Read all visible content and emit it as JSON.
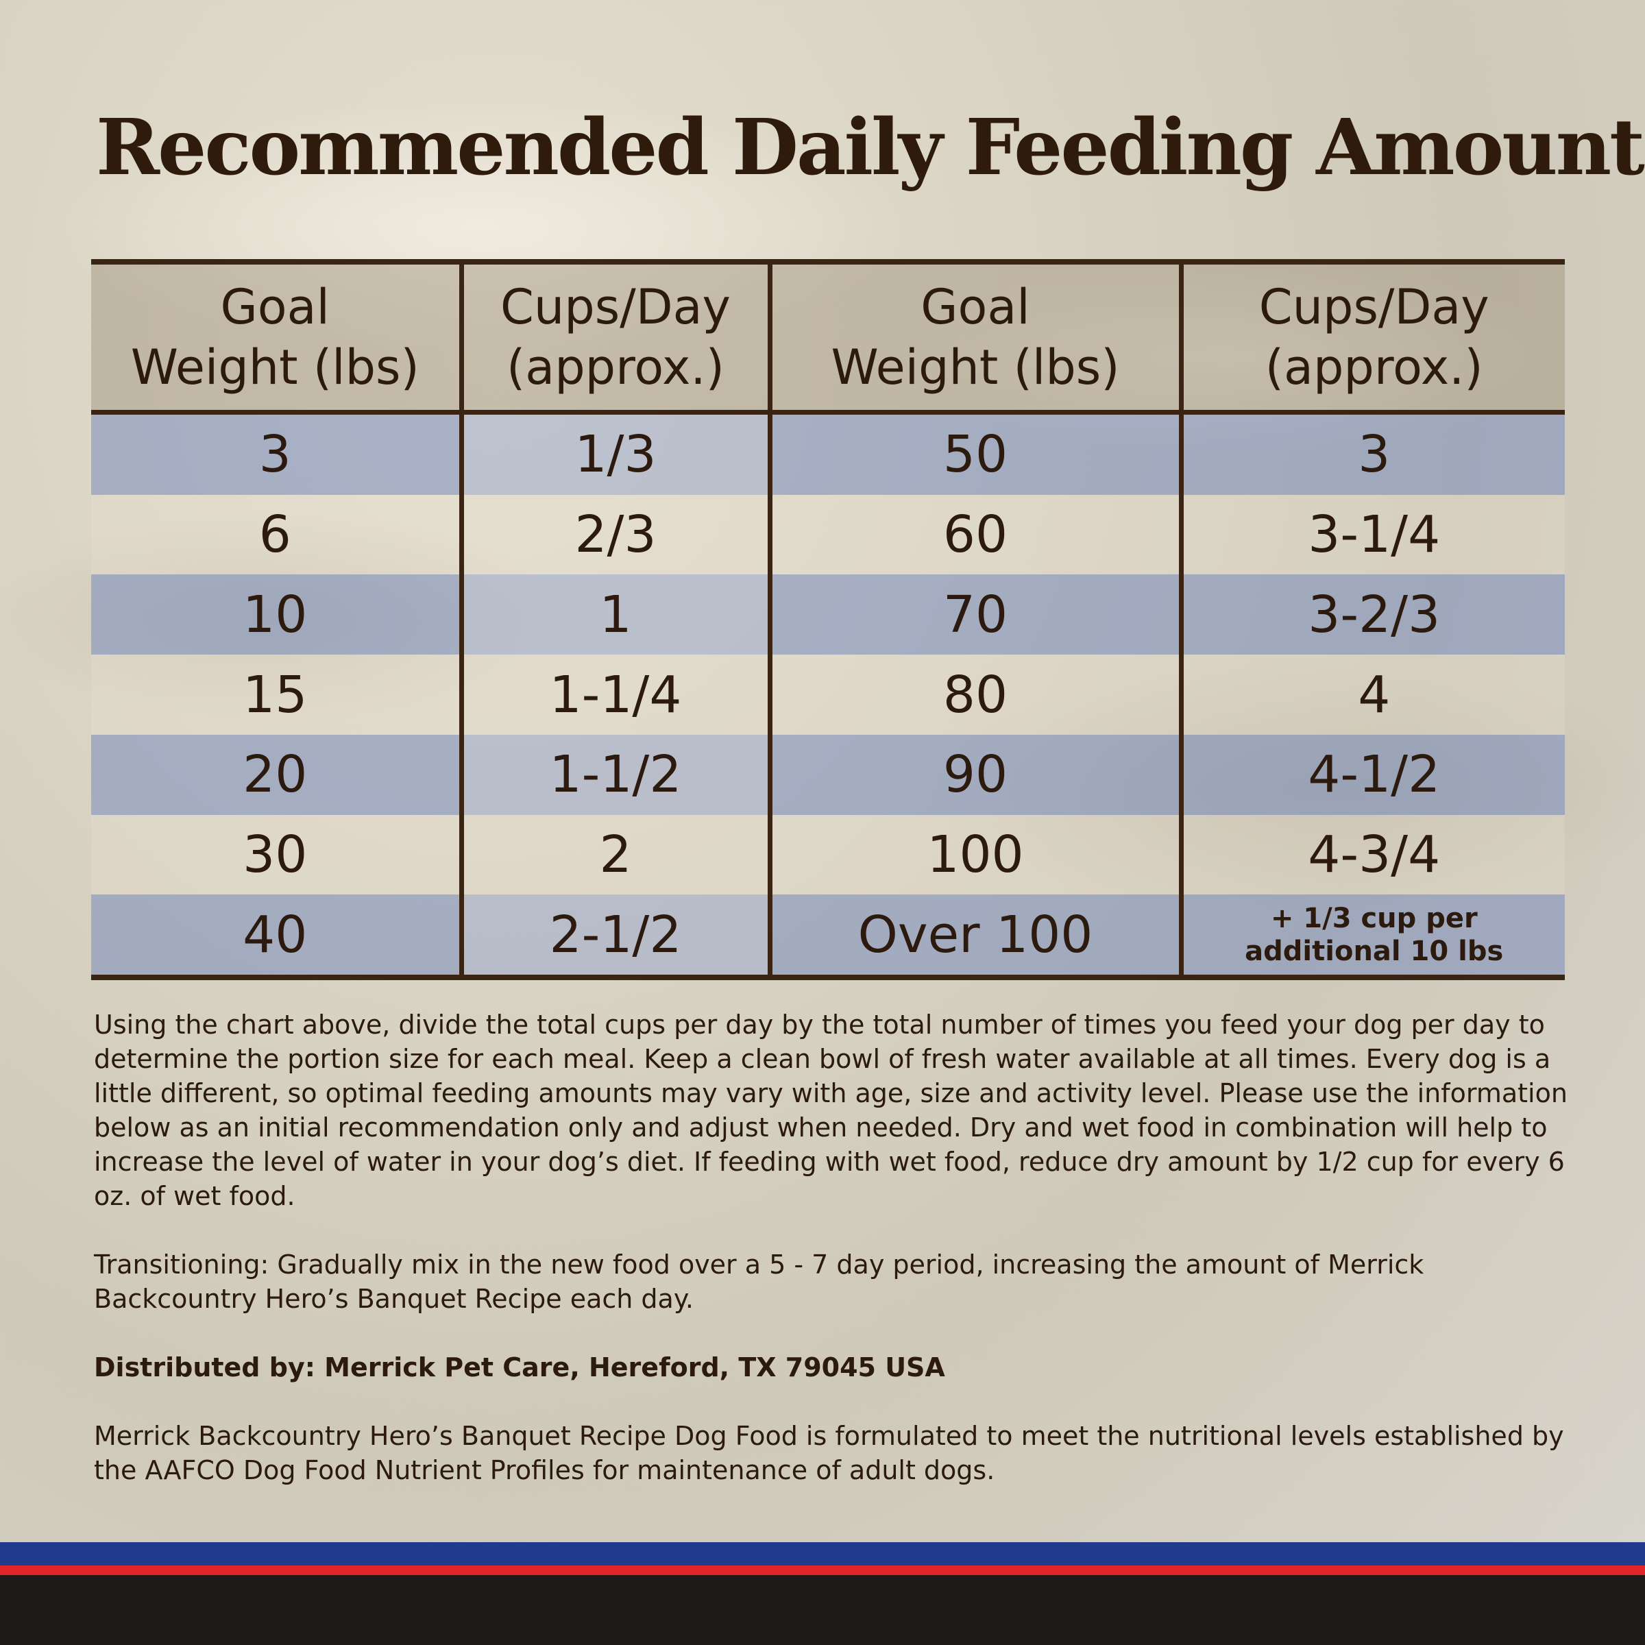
{
  "title": "Recommended Daily Feeding Amounts:",
  "table": {
    "headers": [
      [
        "Goal",
        "Weight (lbs)"
      ],
      [
        "Cups/Day",
        "(approx.)"
      ],
      [
        "Goal",
        "Weight (lbs)"
      ],
      [
        "Cups/Day",
        "(approx.)"
      ]
    ],
    "rows": [
      [
        "3",
        "1/3",
        "50",
        "3"
      ],
      [
        "6",
        "2/3",
        "60",
        "3-1/4"
      ],
      [
        "10",
        "1",
        "70",
        "3-2/3"
      ],
      [
        "15",
        "1-1/4",
        "80",
        "4"
      ],
      [
        "20",
        "1-1/2",
        "90",
        "4-1/2"
      ],
      [
        "30",
        "2",
        "100",
        "4-3/4"
      ],
      [
        "40",
        "2-1/2",
        "Over 100",
        [
          "+ 1/3 cup per",
          "additional 10 lbs"
        ]
      ]
    ]
  },
  "notes": {
    "instructions": "Using the chart above, divide the total cups per day by the total number of times you feed your dog per day to determine the portion size for each meal. Keep a clean bowl of fresh water available at all times. Every dog is a little different, so optimal feeding amounts may vary with age, size and activity level. Please use the information below as an initial recommendation only and adjust when needed. Dry and wet food in combination will help to increase the level of water in your dog’s diet. If feeding with wet food, reduce dry amount by 1/2 cup for every 6 oz. of wet food.",
    "transitioning": "Transitioning: Gradually mix in the new food over a 5 - 7 day period, increasing the amount of Merrick Backcountry Hero’s Banquet Recipe each day.",
    "distributed": "Distributed by: Merrick Pet Care, Hereford, TX 79045 USA",
    "aafco": "Merrick Backcountry Hero’s Banquet Recipe Dog Food is formulated to meet the nutritional levels established by the AAFCO Dog Food Nutrient Profiles for maintenance of adult dogs."
  },
  "colors": {
    "text": "#2c1a0e",
    "row_blue": "#8a9cc8",
    "stripe_blue": "#223a8c",
    "stripe_red": "#e0262b",
    "stripe_black": "#1e1a1a"
  }
}
